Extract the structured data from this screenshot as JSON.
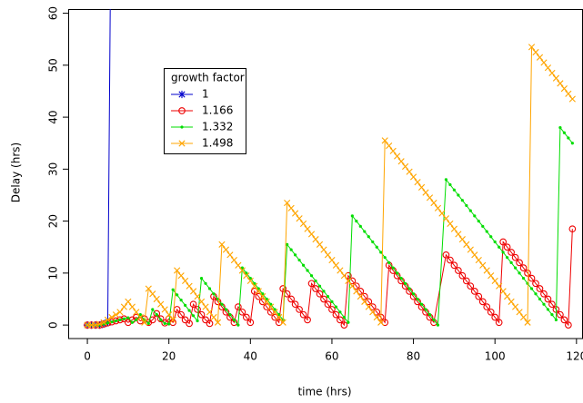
{
  "chart_data": {
    "type": "line",
    "x_label": "time (hrs)",
    "y_label": "Delay (hrs)",
    "legend_title": "growth factor",
    "xlim": [
      -4.7,
      121.6
    ],
    "ylim": [
      -2.6,
      60.8
    ],
    "xticks": [
      0,
      20,
      40,
      60,
      80,
      100,
      120
    ],
    "yticks": [
      0,
      10,
      20,
      30,
      40,
      50,
      60
    ],
    "series": [
      {
        "name": "1",
        "color": "#0000cc",
        "marker": "asterisk",
        "x": [
          0,
          1,
          2,
          3,
          4,
          5,
          6
        ],
        "values": [
          0,
          0,
          0,
          0,
          0.2,
          0.5,
          100
        ]
      },
      {
        "name": "1.166",
        "color": "#ee0000",
        "marker": "circle",
        "x": [
          0,
          1,
          2,
          3,
          4,
          5,
          6,
          7,
          8,
          9,
          10,
          11,
          12,
          13,
          14,
          15,
          16,
          17,
          18,
          19,
          20,
          21,
          22,
          23,
          24,
          25,
          26,
          27,
          28,
          29,
          30,
          31,
          32,
          33,
          34,
          35,
          36,
          37,
          38,
          39,
          40,
          41,
          42,
          43,
          44,
          45,
          46,
          47,
          48,
          49,
          50,
          51,
          52,
          53,
          54,
          55,
          56,
          57,
          58,
          59,
          60,
          61,
          62,
          63,
          64,
          65,
          66,
          67,
          68,
          69,
          70,
          71,
          72,
          73,
          74,
          75,
          76,
          77,
          78,
          79,
          80,
          81,
          82,
          83,
          84,
          85,
          88,
          89,
          90,
          91,
          92,
          93,
          94,
          95,
          96,
          97,
          98,
          99,
          100,
          101,
          102,
          103,
          104,
          105,
          106,
          107,
          108,
          109,
          110,
          111,
          112,
          113,
          114,
          115,
          116,
          117,
          118,
          119
        ],
        "values": [
          0,
          0,
          0,
          0,
          0.2,
          0.4,
          0.6,
          0.8,
          1,
          1.2,
          0.5,
          1,
          1.5,
          0.8,
          1.2,
          0.5,
          1,
          2.2,
          1.2,
          0.4,
          1.2,
          0.5,
          3,
          2,
          1,
          0.3,
          4,
          3,
          2,
          1,
          0.3,
          5.5,
          4.5,
          3.5,
          2.5,
          1.5,
          0.5,
          3.5,
          2.5,
          1.5,
          0.5,
          6.5,
          5.5,
          4.5,
          3.5,
          2.5,
          1.5,
          0.5,
          7,
          6,
          5,
          4,
          3,
          2,
          1,
          8,
          7,
          6,
          5,
          4,
          3,
          2,
          1,
          0,
          9.5,
          8.5,
          7.5,
          6.5,
          5.5,
          4.5,
          3.5,
          2.5,
          1.5,
          0.5,
          11.5,
          10.5,
          9.5,
          8.5,
          7.5,
          6.5,
          5.5,
          4.5,
          3.5,
          2.5,
          1.5,
          0.5,
          13.5,
          12.5,
          11.5,
          10.5,
          9.5,
          8.5,
          7.5,
          6.5,
          5.5,
          4.5,
          3.5,
          2.5,
          1.5,
          0.5,
          16,
          15,
          14,
          13,
          12,
          11,
          10,
          9,
          8,
          7,
          6,
          5,
          4,
          3,
          2,
          1,
          0,
          18.5
        ]
      },
      {
        "name": "1.332",
        "color": "#00dd00",
        "marker": "dot",
        "x": [
          0,
          1,
          2,
          3,
          4,
          5,
          6,
          7,
          8,
          9,
          10,
          11,
          12,
          13,
          14,
          15,
          16,
          17,
          18,
          19,
          20,
          21,
          22,
          23,
          24,
          25,
          26,
          27,
          28,
          29,
          30,
          31,
          32,
          33,
          34,
          35,
          36,
          37,
          38,
          39,
          40,
          41,
          42,
          43,
          44,
          45,
          46,
          47,
          48,
          49,
          50,
          51,
          52,
          53,
          54,
          55,
          56,
          57,
          58,
          59,
          60,
          61,
          62,
          63,
          64,
          65,
          66,
          67,
          68,
          69,
          70,
          71,
          72,
          73,
          74,
          75,
          76,
          77,
          78,
          79,
          80,
          81,
          82,
          83,
          84,
          85,
          86,
          88,
          89,
          90,
          91,
          92,
          93,
          94,
          95,
          96,
          97,
          98,
          99,
          100,
          101,
          102,
          103,
          104,
          105,
          106,
          107,
          108,
          109,
          110,
          111,
          112,
          113,
          114,
          115,
          116,
          117,
          118,
          119
        ],
        "values": [
          0,
          0,
          0,
          0,
          0.2,
          0.4,
          0.6,
          0.8,
          1,
          1.2,
          1.4,
          0.5,
          1,
          2,
          1,
          0.3,
          3,
          2,
          1,
          0.3,
          0.2,
          6.8,
          5.8,
          4.8,
          3.8,
          2.8,
          1.8,
          0.8,
          9,
          8,
          7,
          6,
          5,
          4,
          3,
          2,
          1,
          0,
          11,
          10,
          9,
          8,
          7,
          6,
          5,
          4,
          3,
          2,
          1,
          15.5,
          14.5,
          13.5,
          12.5,
          11.5,
          10.5,
          9.5,
          8.5,
          7.5,
          6.5,
          5.5,
          4.5,
          3.5,
          2.5,
          1.5,
          0.5,
          21,
          20,
          19,
          18,
          17,
          16,
          15,
          14,
          13,
          12,
          11,
          10,
          9,
          8,
          7,
          6,
          5,
          4,
          3,
          2,
          1,
          0,
          28,
          27,
          26,
          25,
          24,
          23,
          22,
          21,
          20,
          19,
          18,
          17,
          16,
          15,
          14,
          13,
          12,
          11,
          10,
          9,
          8,
          7,
          6,
          5,
          4,
          3,
          2,
          1,
          38,
          37,
          36,
          35
        ]
      },
      {
        "name": "1.498",
        "color": "#ffa500",
        "marker": "cross",
        "x": [
          0,
          1,
          2,
          3,
          4,
          5,
          6,
          7,
          8,
          9,
          10,
          11,
          12,
          13,
          14,
          15,
          16,
          17,
          18,
          19,
          20,
          21,
          22,
          23,
          24,
          25,
          26,
          27,
          28,
          29,
          30,
          31,
          32,
          33,
          34,
          35,
          36,
          37,
          38,
          39,
          40,
          41,
          42,
          43,
          44,
          45,
          46,
          47,
          48,
          49,
          50,
          51,
          52,
          53,
          54,
          55,
          56,
          57,
          58,
          59,
          60,
          61,
          62,
          63,
          64,
          65,
          66,
          67,
          68,
          69,
          70,
          71,
          72,
          73,
          74,
          75,
          76,
          77,
          78,
          79,
          80,
          81,
          82,
          83,
          84,
          85,
          86,
          87,
          88,
          89,
          90,
          91,
          92,
          93,
          94,
          95,
          96,
          97,
          98,
          99,
          100,
          101,
          102,
          103,
          104,
          105,
          106,
          107,
          108,
          109,
          110,
          111,
          112,
          113,
          114,
          115,
          116,
          117,
          118,
          119
        ],
        "values": [
          0,
          0,
          0,
          0.2,
          0.5,
          1,
          1.5,
          2,
          2.5,
          3.5,
          4.5,
          3.5,
          2.5,
          1.5,
          0.5,
          7,
          6,
          5,
          4,
          3,
          2,
          1,
          10.5,
          9.5,
          8.5,
          7.5,
          6.5,
          5.5,
          4.5,
          3.5,
          2.5,
          1.5,
          0.5,
          15.5,
          14.5,
          13.5,
          12.5,
          11.5,
          10.5,
          9.5,
          8.5,
          7.5,
          6.5,
          5.5,
          4.5,
          3.5,
          2.5,
          1.5,
          0.5,
          23.5,
          22.5,
          21.5,
          20.5,
          19.5,
          18.5,
          17.5,
          16.5,
          15.5,
          14.5,
          13.5,
          12.5,
          11.5,
          10.5,
          9.5,
          8.5,
          7.5,
          6.5,
          5.5,
          4.5,
          3.5,
          2.5,
          1.5,
          0.5,
          35.5,
          34.5,
          33.5,
          32.5,
          31.5,
          30.5,
          29.5,
          28.5,
          27.5,
          26.5,
          25.5,
          24.5,
          23.5,
          22.5,
          21.5,
          20.5,
          19.5,
          18.5,
          17.5,
          16.5,
          15.5,
          14.5,
          13.5,
          12.5,
          11.5,
          10.5,
          9.5,
          8.5,
          7.5,
          6.5,
          5.5,
          4.5,
          3.5,
          2.5,
          1.5,
          0.5,
          53.5,
          52.5,
          51.5,
          50.5,
          49.5,
          48.5,
          47.5,
          46.5,
          45.5,
          44.5,
          43.5
        ]
      }
    ]
  }
}
